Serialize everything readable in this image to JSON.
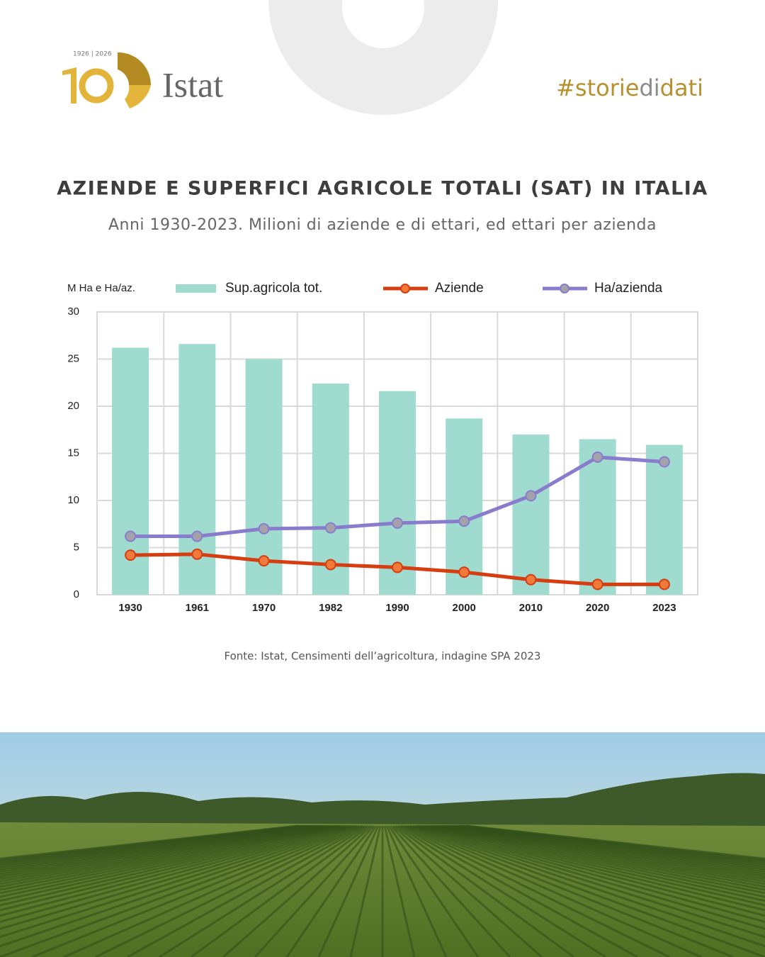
{
  "header": {
    "years": "1926 | 2026",
    "brand": "Istat",
    "hashtag": [
      "#storie",
      "di",
      "dati"
    ]
  },
  "chart_data": {
    "type": "bar",
    "title": "AZIENDE E SUPERFICI AGRICOLE TOTALI (SAT) IN ITALIA",
    "subtitle": "Anni 1930-2023. Milioni di aziende e di ettari, ed ettari per azienda",
    "y_label": "M Ha e Ha/az.",
    "categories": [
      "1930",
      "1961",
      "1970",
      "1982",
      "1990",
      "2000",
      "2010",
      "2020",
      "2023"
    ],
    "series": [
      {
        "name": "Sup.agricola tot.",
        "type": "bar",
        "color": "#a0dbd0",
        "values": [
          26.2,
          26.6,
          25.0,
          22.4,
          21.6,
          18.7,
          17.0,
          16.5,
          15.9
        ]
      },
      {
        "name": "Aziende",
        "type": "line",
        "color": "#d63d10",
        "marker_color": "#f07a3a",
        "values": [
          4.2,
          4.3,
          3.6,
          3.2,
          2.9,
          2.4,
          1.6,
          1.1,
          1.1
        ]
      },
      {
        "name": "Ha/azienda",
        "type": "line",
        "color": "#8a7ccc",
        "marker_color": "#a3a2ab",
        "values": [
          6.2,
          6.2,
          7.0,
          7.1,
          7.6,
          7.8,
          10.5,
          14.6,
          14.1
        ]
      }
    ],
    "ylim": [
      0,
      30
    ],
    "yticks": [
      0,
      5,
      10,
      15,
      20,
      25,
      30
    ],
    "grid": true,
    "source": "Fonte:  Istat, Censimenti dell’agricoltura, indagine SPA 2023"
  }
}
